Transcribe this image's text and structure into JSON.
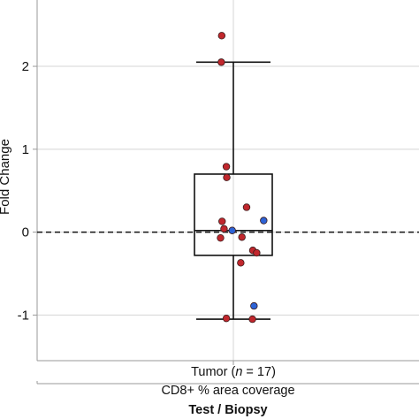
{
  "chart_data": {
    "type": "box",
    "ylabel": "Fold Change",
    "ylim": [
      -1.55,
      2.8
    ],
    "yticks": [
      -1,
      0,
      1,
      2
    ],
    "grid": true,
    "reference_line": 0,
    "category": {
      "name": "Tumor",
      "n_prefix": "n",
      "n_value": "17"
    },
    "subtitle": "CD8+ % area coverage",
    "facet_title": "Test / Biopsy",
    "box": {
      "whisker_low": -1.05,
      "q1": -0.28,
      "median": 0.02,
      "q3": 0.7,
      "whisker_high": 2.05
    },
    "points": [
      {
        "x": -0.3,
        "y": 2.37,
        "group": "red"
      },
      {
        "x": -0.31,
        "y": 2.05,
        "group": "red"
      },
      {
        "x": -0.18,
        "y": 0.79,
        "group": "red"
      },
      {
        "x": -0.17,
        "y": 0.66,
        "group": "red"
      },
      {
        "x": 0.34,
        "y": 0.3,
        "group": "red"
      },
      {
        "x": -0.29,
        "y": 0.13,
        "group": "red"
      },
      {
        "x": -0.24,
        "y": 0.04,
        "group": "red"
      },
      {
        "x": -0.33,
        "y": -0.07,
        "group": "red"
      },
      {
        "x": 0.22,
        "y": -0.06,
        "group": "red"
      },
      {
        "x": 0.5,
        "y": -0.22,
        "group": "red"
      },
      {
        "x": 0.6,
        "y": -0.25,
        "group": "red"
      },
      {
        "x": 0.19,
        "y": -0.37,
        "group": "red"
      },
      {
        "x": -0.18,
        "y": -1.04,
        "group": "red"
      },
      {
        "x": 0.49,
        "y": -1.05,
        "group": "red"
      },
      {
        "x": -0.03,
        "y": 0.02,
        "group": "blue"
      },
      {
        "x": 0.78,
        "y": 0.14,
        "group": "blue"
      },
      {
        "x": 0.53,
        "y": -0.89,
        "group": "blue"
      }
    ],
    "colors": {
      "red": "#c1272d",
      "blue": "#2d63d6",
      "grid": "#d4d4d4",
      "axis": "#9a9a9a",
      "box": "#111111"
    }
  }
}
